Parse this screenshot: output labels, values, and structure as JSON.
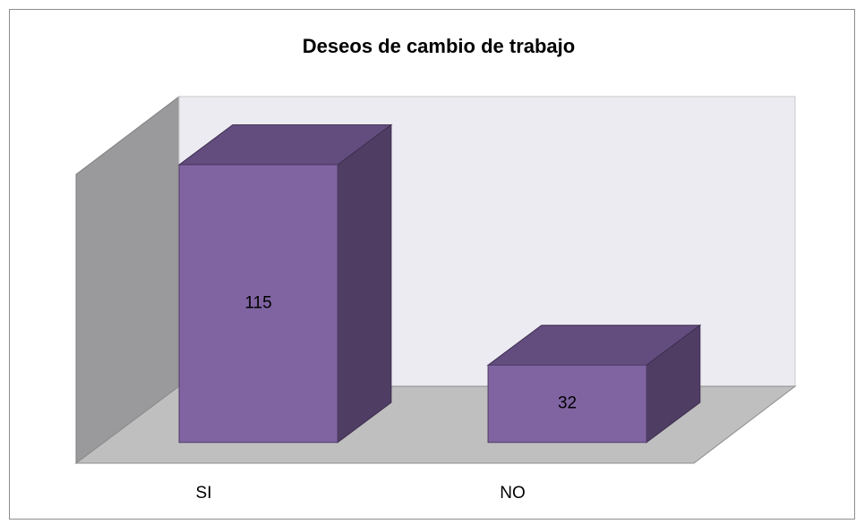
{
  "chart_data": {
    "type": "bar3d",
    "title": "Deseos de cambio de trabajo",
    "categories": [
      "SI",
      "NO"
    ],
    "values": [
      115,
      32
    ],
    "color": "#8064a2",
    "ylim": [
      0,
      120
    ]
  }
}
